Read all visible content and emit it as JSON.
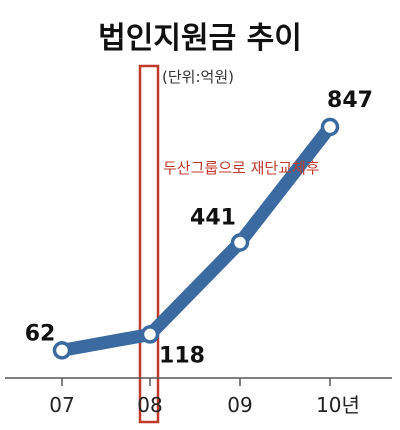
{
  "chart_data": {
    "type": "line",
    "title": "법인지원금 추이",
    "unit_label": "(단위:억원)",
    "categories": [
      "07",
      "08",
      "09",
      "10년"
    ],
    "series": [
      {
        "values": [
          62,
          118,
          441,
          847
        ]
      }
    ],
    "value_labels": [
      "62",
      "118",
      "441",
      "847"
    ],
    "annotation": {
      "text": "두산그룹으로 재단교체후",
      "at_category": "08",
      "color": "#c0392b"
    },
    "ylim": [
      0,
      900
    ],
    "grid": false,
    "colors": {
      "line": "#3a6aa0",
      "highlight": "#c0392b"
    }
  }
}
